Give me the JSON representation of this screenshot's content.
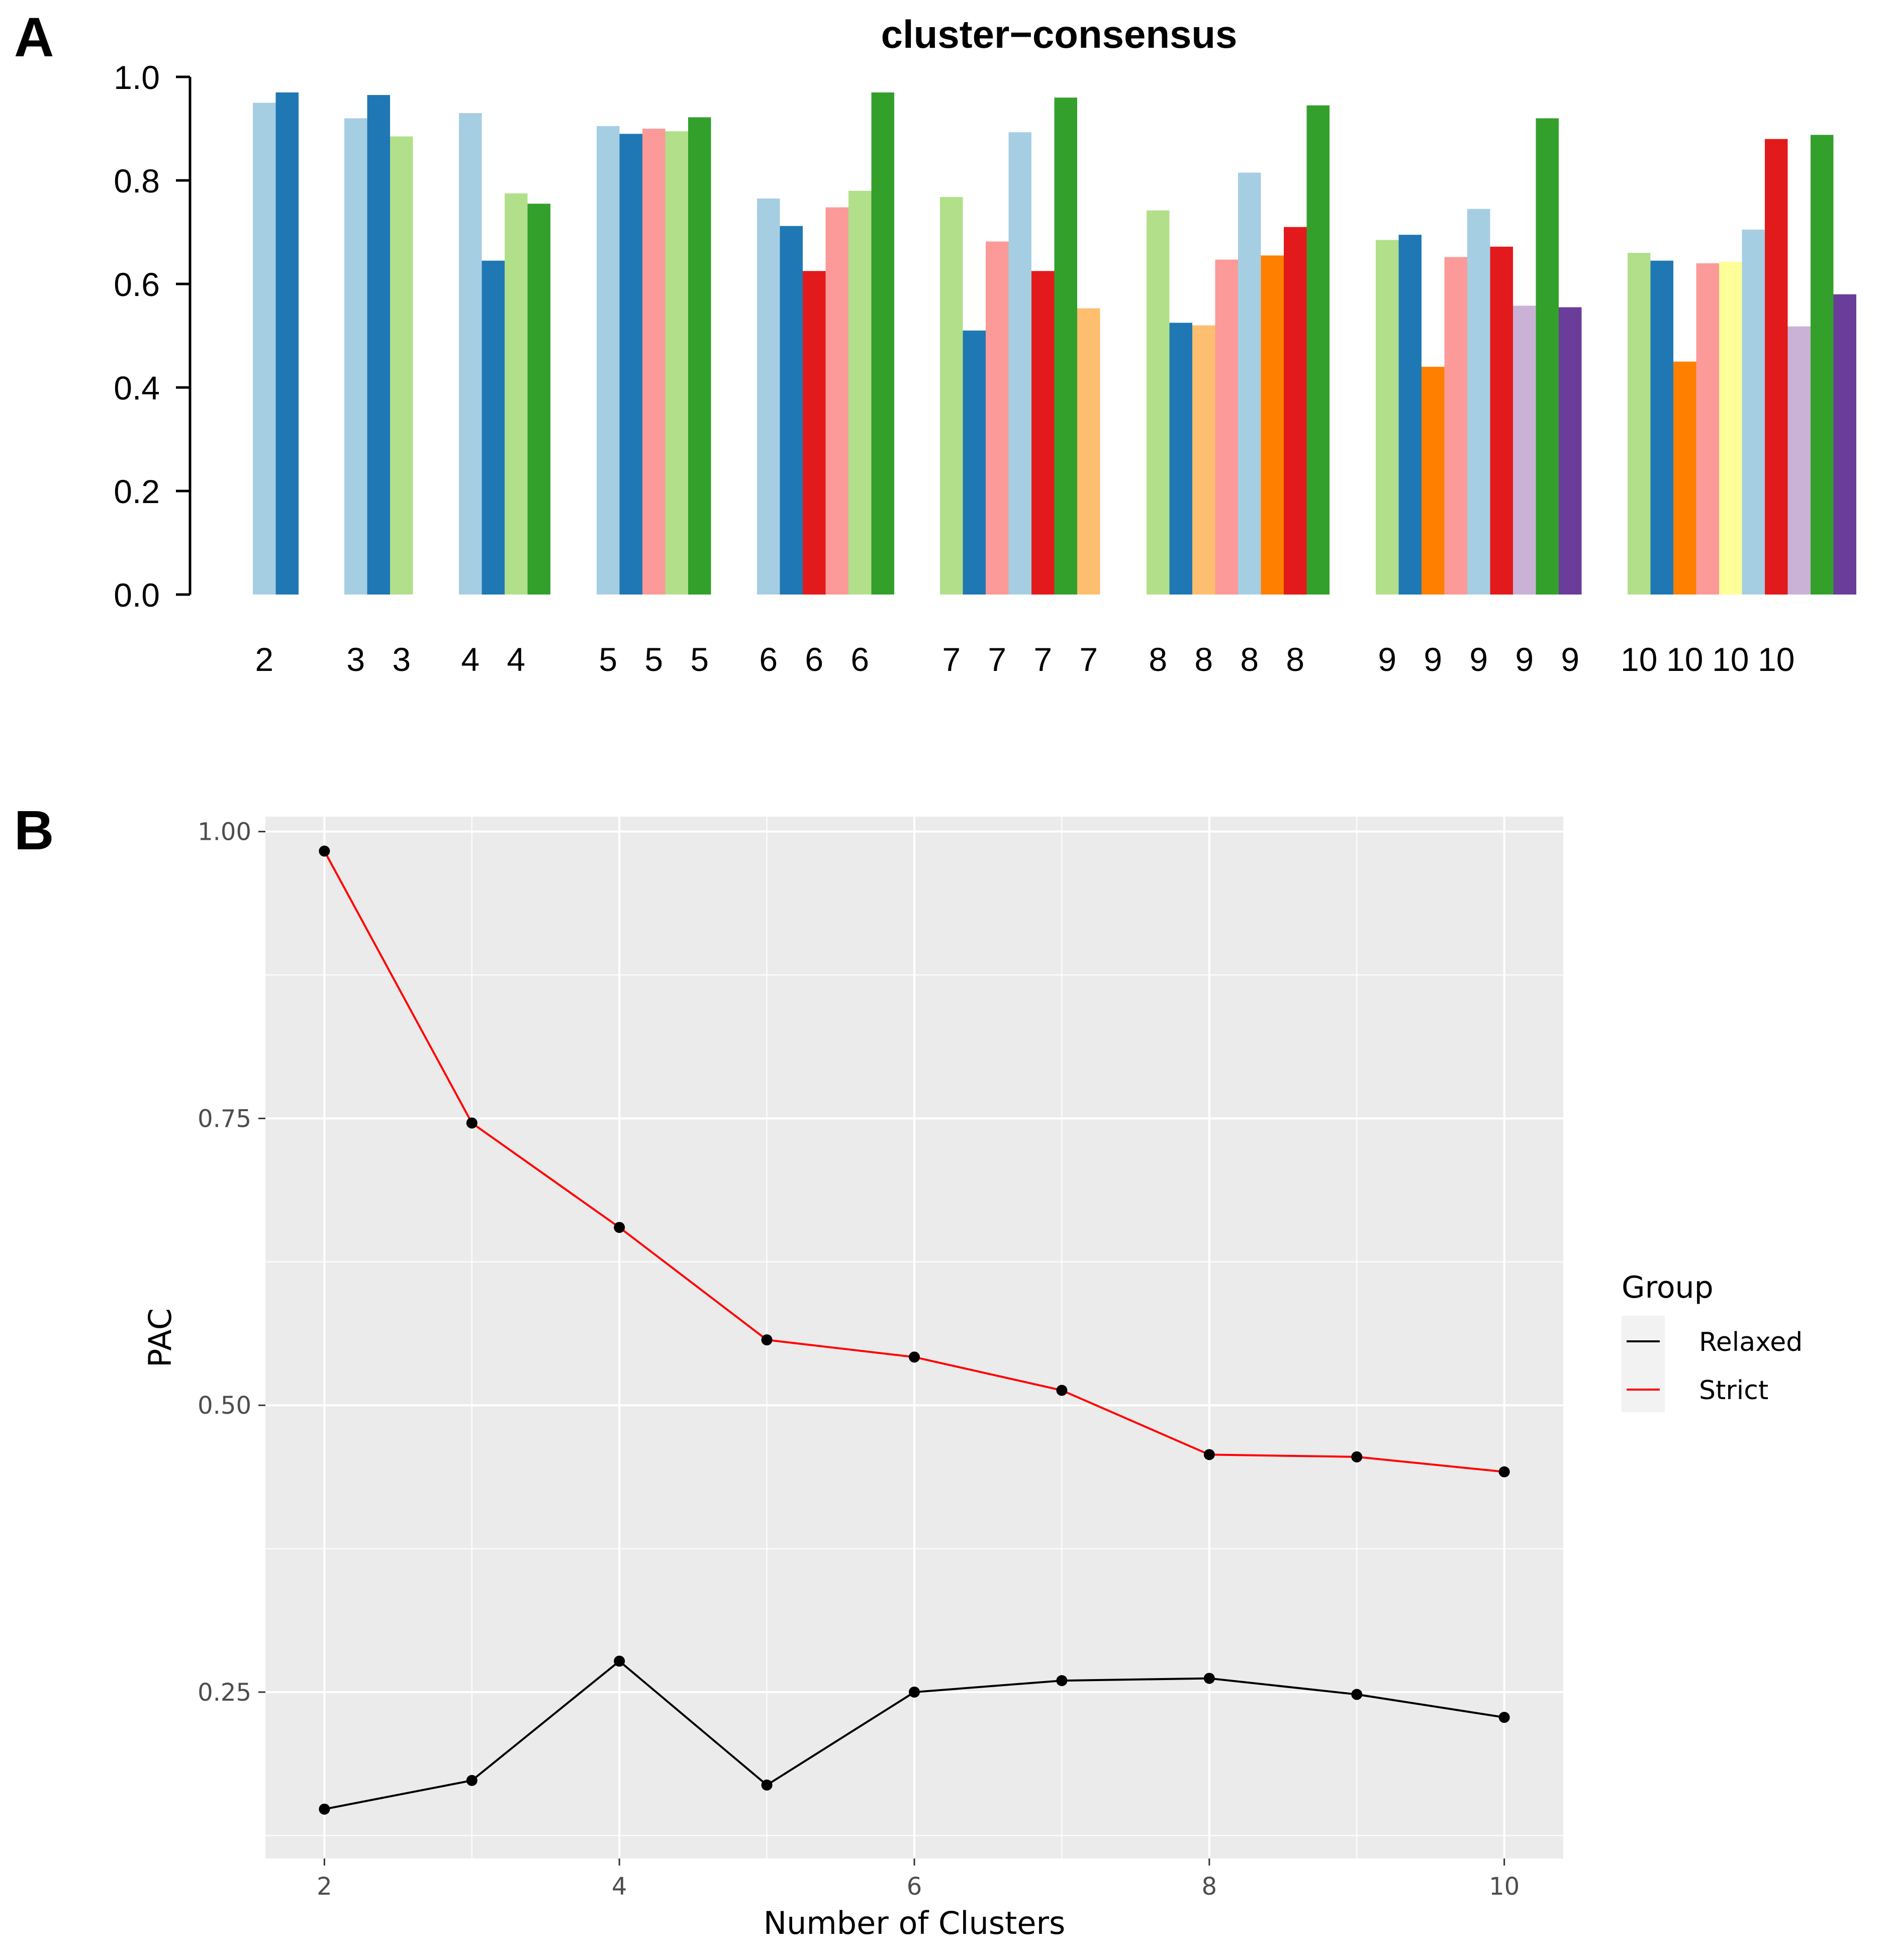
{
  "chart_data": [
    {
      "panel": "A",
      "type": "bar",
      "title": "cluster−consensus",
      "xlabel": "",
      "ylabel": "",
      "ylim": [
        0,
        1.0
      ],
      "yticks": [
        "0.0",
        "0.2",
        "0.4",
        "0.6",
        "0.8",
        "1.0"
      ],
      "groups": [
        {
          "k": 2,
          "labels": [
            "2"
          ],
          "bars": [
            {
              "value": 0.95,
              "color": "#A6CEE3"
            },
            {
              "value": 0.97,
              "color": "#1F78B4"
            }
          ]
        },
        {
          "k": 3,
          "labels": [
            "3",
            "3"
          ],
          "bars": [
            {
              "value": 0.92,
              "color": "#A6CEE3"
            },
            {
              "value": 0.965,
              "color": "#1F78B4"
            },
            {
              "value": 0.885,
              "color": "#B2DF8A"
            }
          ]
        },
        {
          "k": 4,
          "labels": [
            "4",
            "4"
          ],
          "bars": [
            {
              "value": 0.93,
              "color": "#A6CEE3"
            },
            {
              "value": 0.645,
              "color": "#1F78B4"
            },
            {
              "value": 0.775,
              "color": "#B2DF8A"
            },
            {
              "value": 0.755,
              "color": "#33A02C"
            }
          ]
        },
        {
          "k": 5,
          "labels": [
            "5",
            "5",
            "5"
          ],
          "bars": [
            {
              "value": 0.905,
              "color": "#A6CEE3"
            },
            {
              "value": 0.89,
              "color": "#1F78B4"
            },
            {
              "value": 0.9,
              "color": "#FB9A99"
            },
            {
              "value": 0.895,
              "color": "#B2DF8A"
            },
            {
              "value": 0.922,
              "color": "#33A02C"
            }
          ]
        },
        {
          "k": 6,
          "labels": [
            "6",
            "6",
            "6"
          ],
          "bars": [
            {
              "value": 0.765,
              "color": "#A6CEE3"
            },
            {
              "value": 0.712,
              "color": "#1F78B4"
            },
            {
              "value": 0.625,
              "color": "#E31A1C"
            },
            {
              "value": 0.748,
              "color": "#FB9A99"
            },
            {
              "value": 0.78,
              "color": "#B2DF8A"
            },
            {
              "value": 0.97,
              "color": "#33A02C"
            }
          ]
        },
        {
          "k": 7,
          "labels": [
            "7",
            "7",
            "7",
            "7"
          ],
          "bars": [
            {
              "value": 0.768,
              "color": "#B2DF8A"
            },
            {
              "value": 0.51,
              "color": "#1F78B4"
            },
            {
              "value": 0.682,
              "color": "#FB9A99"
            },
            {
              "value": 0.893,
              "color": "#A6CEE3"
            },
            {
              "value": 0.625,
              "color": "#E31A1C"
            },
            {
              "value": 0.96,
              "color": "#33A02C"
            },
            {
              "value": 0.553,
              "color": "#FDBF6F"
            }
          ]
        },
        {
          "k": 8,
          "labels": [
            "8",
            "8",
            "8",
            "8"
          ],
          "bars": [
            {
              "value": 0.742,
              "color": "#B2DF8A"
            },
            {
              "value": 0.525,
              "color": "#1F78B4"
            },
            {
              "value": 0.52,
              "color": "#FDBF6F"
            },
            {
              "value": 0.647,
              "color": "#FB9A99"
            },
            {
              "value": 0.815,
              "color": "#A6CEE3"
            },
            {
              "value": 0.655,
              "color": "#FF7F00"
            },
            {
              "value": 0.71,
              "color": "#E31A1C"
            },
            {
              "value": 0.945,
              "color": "#33A02C"
            }
          ]
        },
        {
          "k": 9,
          "labels": [
            "9",
            "9",
            "9",
            "9",
            "9"
          ],
          "bars": [
            {
              "value": 0.685,
              "color": "#B2DF8A"
            },
            {
              "value": 0.695,
              "color": "#1F78B4"
            },
            {
              "value": 0.44,
              "color": "#FF7F00"
            },
            {
              "value": 0.652,
              "color": "#FB9A99"
            },
            {
              "value": 0.745,
              "color": "#A6CEE3"
            },
            {
              "value": 0.672,
              "color": "#E31A1C"
            },
            {
              "value": 0.558,
              "color": "#CAB2D6"
            },
            {
              "value": 0.92,
              "color": "#33A02C"
            },
            {
              "value": 0.555,
              "color": "#6A3D9A"
            }
          ]
        },
        {
          "k": 10,
          "labels": [
            "10",
            "10",
            "10",
            "10"
          ],
          "bars": [
            {
              "value": 0.66,
              "color": "#B2DF8A"
            },
            {
              "value": 0.645,
              "color": "#1F78B4"
            },
            {
              "value": 0.45,
              "color": "#FF7F00"
            },
            {
              "value": 0.64,
              "color": "#FB9A99"
            },
            {
              "value": 0.643,
              "color": "#FFFF99"
            },
            {
              "value": 0.705,
              "color": "#A6CEE3"
            },
            {
              "value": 0.88,
              "color": "#E31A1C"
            },
            {
              "value": 0.518,
              "color": "#CAB2D6"
            },
            {
              "value": 0.888,
              "color": "#33A02C"
            },
            {
              "value": 0.58,
              "color": "#6A3D9A"
            }
          ]
        }
      ]
    },
    {
      "panel": "B",
      "type": "line",
      "title": "",
      "xlabel": "Number of Clusters",
      "ylabel": "PAC",
      "x": [
        2,
        3,
        4,
        5,
        6,
        7,
        8,
        9,
        10
      ],
      "xlim": [
        1.6,
        10.4
      ],
      "ylim": [
        0.105,
        1.013
      ],
      "xticks": [
        2,
        4,
        6,
        8,
        10
      ],
      "xtick_labels": [
        "2",
        "4",
        "6",
        "8",
        "10"
      ],
      "yticks": [
        0.25,
        0.5,
        0.75,
        1.0
      ],
      "ytick_labels": [
        "0.25",
        "0.50",
        "0.75",
        "1.00"
      ],
      "legend_title": "Group",
      "legend_position": "right",
      "series": [
        {
          "name": "Relaxed",
          "color": "#000000",
          "values": [
            0.148,
            0.173,
            0.277,
            0.169,
            0.25,
            0.26,
            0.262,
            0.248,
            0.228
          ]
        },
        {
          "name": "Strict",
          "color": "#FF0000",
          "values": [
            0.983,
            0.746,
            0.655,
            0.557,
            0.542,
            0.513,
            0.457,
            0.455,
            0.442
          ]
        }
      ],
      "panel_bg": "#EBEBEB",
      "grid_color": "#FFFFFF"
    }
  ]
}
